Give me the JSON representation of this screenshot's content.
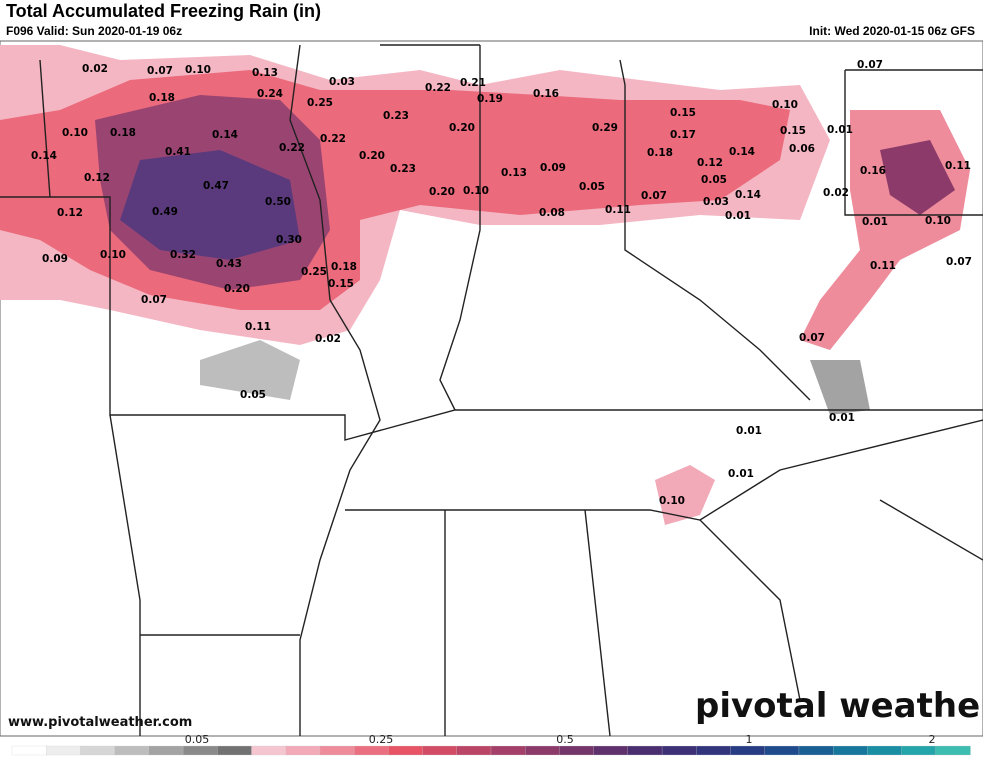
{
  "header": {
    "title": "Total Accumulated Freezing Rain (in)",
    "valid": "F096 Valid: Sun 2020-01-19 06z",
    "init": "Init: Wed 2020-01-15 06z GFS"
  },
  "map": {
    "labels": [
      "0.02",
      "0.07",
      "0.10",
      "0.13",
      "0.03",
      "0.22",
      "0.21",
      "0.19",
      "0.16",
      "0.07",
      "0.18",
      "0.24",
      "0.25",
      "0.10",
      "0.10",
      "0.18",
      "0.14",
      "0.23",
      "0.20",
      "0.29",
      "0.15",
      "0.17",
      "0.15",
      "0.01",
      "0.14",
      "0.41",
      "0.22",
      "0.22",
      "0.20",
      "0.06",
      "0.18",
      "0.14",
      "0.11",
      "0.16",
      "0.12",
      "0.47",
      "0.23",
      "0.12",
      "0.13",
      "0.09",
      "0.05",
      "0.05",
      "0.02",
      "0.20",
      "0.10",
      "0.07",
      "0.03",
      "0.14",
      "0.50",
      "0.12",
      "0.49",
      "0.08",
      "0.11",
      "0.01",
      "0.01",
      "0.10",
      "0.30",
      "0.09",
      "0.10",
      "0.32",
      "0.43",
      "0.18",
      "0.25",
      "0.11",
      "0.07",
      "0.15",
      "0.20",
      "0.07",
      "0.11",
      "0.02",
      "0.07",
      "0.05",
      "0.01",
      "0.01",
      "0.01",
      "0.10"
    ]
  },
  "footer": {
    "website": "www.pivotalweather.com",
    "logo": "pivotal weather"
  },
  "colorbar": {
    "ticks": [
      "0.05",
      "0.25",
      "0.5",
      "1",
      "2"
    ],
    "colors": [
      "#ffffff",
      "#eeeeee",
      "#d6d6d6",
      "#bdbdbd",
      "#a3a3a3",
      "#8a8a8a",
      "#727272",
      "#f6c6d0",
      "#f2a9b8",
      "#ee8c9c",
      "#ea6f80",
      "#e65466",
      "#d24c66",
      "#bb4567",
      "#a33f68",
      "#8b3a6a",
      "#74356b",
      "#5e316d",
      "#4a2e70",
      "#3d3075",
      "#32357c",
      "#283c84",
      "#1f4a8c",
      "#1a5f94",
      "#17769b",
      "#1a8ea3",
      "#24a5aa",
      "#3dbcb0"
    ]
  }
}
